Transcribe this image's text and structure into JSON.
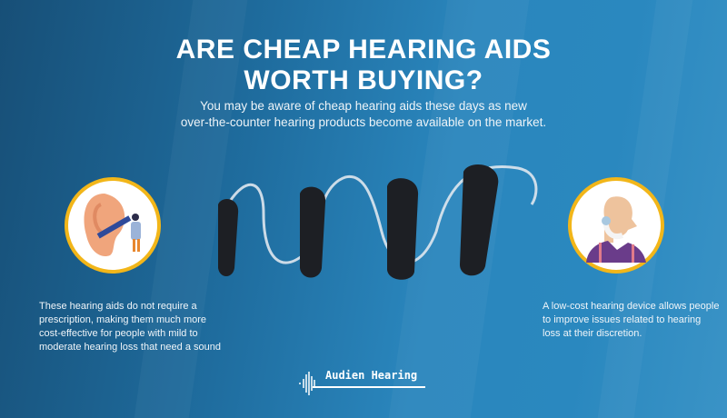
{
  "header": {
    "title_line1": "ARE CHEAP HEARING AIDS",
    "title_line2": "WORTH BUYING?",
    "subtitle_line1": "You may be aware of cheap hearing aids these days as new",
    "subtitle_line2": "over-the-counter hearing products become available on the market."
  },
  "left_caption": [
    "These hearing aids do not require a",
    "prescription, making them much more",
    "cost-effective for people with mild to",
    "moderate hearing loss that need a sound"
  ],
  "right_caption": [
    "A low-cost hearing device allows people",
    "to improve issues related to hearing",
    "loss at their discretion."
  ],
  "logo": {
    "text": "Audien Hearing",
    "icon": "sound-wave-icon"
  },
  "icons": {
    "left": "ear-examination-illustration",
    "right": "elderly-man-hearing-aid-illustration"
  },
  "colors": {
    "background": "#2a86bd",
    "circle_border": "#f2b619",
    "device": "#1d1f24"
  }
}
